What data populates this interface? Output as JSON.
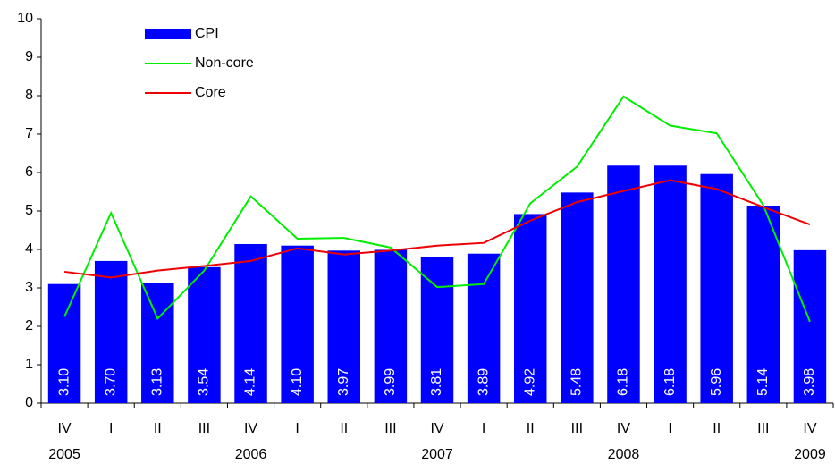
{
  "chart_data": {
    "type": "bar-line",
    "categories": [
      "IV",
      "I",
      "II",
      "III",
      "IV",
      "I",
      "II",
      "III",
      "IV",
      "I",
      "II",
      "III",
      "IV",
      "I",
      "II",
      "III",
      "IV"
    ],
    "year_labels": [
      "2005",
      null,
      null,
      null,
      "2006",
      null,
      null,
      null,
      "2007",
      null,
      null,
      null,
      "2008",
      null,
      null,
      null,
      "2009"
    ],
    "series": [
      {
        "name": "CPI",
        "type": "bar",
        "color": "#0000ff",
        "values": [
          3.1,
          3.7,
          3.13,
          3.54,
          4.14,
          4.1,
          3.97,
          3.99,
          3.81,
          3.89,
          4.92,
          5.48,
          6.18,
          6.18,
          5.96,
          5.14,
          3.98
        ],
        "value_labels": [
          "3.10",
          "3.70",
          "3.13",
          "3.54",
          "4.14",
          "4.10",
          "3.97",
          "3.99",
          "3.81",
          "3.89",
          "4.92",
          "5.48",
          "6.18",
          "6.18",
          "5.96",
          "5.14",
          "3.98"
        ]
      },
      {
        "name": "Non-core",
        "type": "line",
        "color": "#00ee00",
        "values": [
          2.25,
          4.95,
          2.2,
          3.45,
          5.38,
          4.28,
          4.3,
          4.05,
          3.02,
          3.1,
          5.2,
          6.15,
          7.98,
          7.22,
          7.02,
          5.15,
          2.12
        ]
      },
      {
        "name": "Core",
        "type": "line",
        "color": "#ee0000",
        "values": [
          3.42,
          3.27,
          3.45,
          3.57,
          3.7,
          4.03,
          3.87,
          3.97,
          4.1,
          4.17,
          4.75,
          5.23,
          5.52,
          5.8,
          5.57,
          5.1,
          4.65
        ]
      }
    ],
    "ylim": [
      0,
      10
    ],
    "yticks": [
      0,
      1,
      2,
      3,
      4,
      5,
      6,
      7,
      8,
      9,
      10
    ],
    "grid": false,
    "legend": "top-left"
  }
}
